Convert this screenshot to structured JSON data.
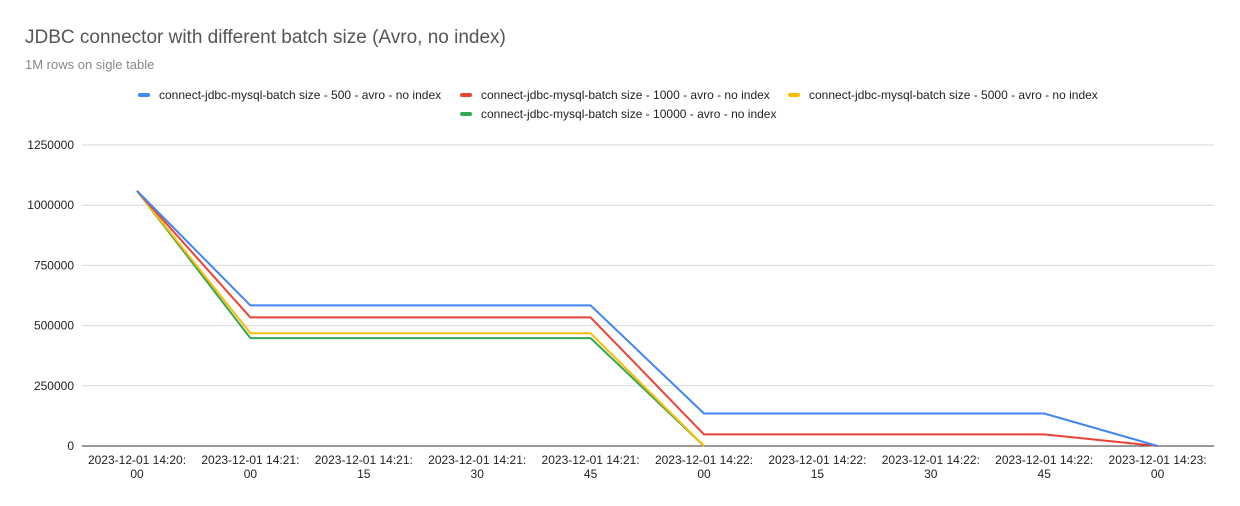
{
  "chart_data": {
    "type": "line",
    "title": "JDBC connector with different batch size (Avro, no index)",
    "subtitle": "1M rows on sigle table",
    "x": [
      [
        "2023-12-01 14:20:",
        "00"
      ],
      [
        "2023-12-01 14:21:",
        "00"
      ],
      [
        "2023-12-01 14:21:",
        "15"
      ],
      [
        "2023-12-01 14:21:",
        "30"
      ],
      [
        "2023-12-01 14:21:",
        "45"
      ],
      [
        "2023-12-01 14:22:",
        "00"
      ],
      [
        "2023-12-01 14:22:",
        "15"
      ],
      [
        "2023-12-01 14:22:",
        "30"
      ],
      [
        "2023-12-01 14:22:",
        "45"
      ],
      [
        "2023-12-01 14:23:",
        "00"
      ]
    ],
    "y_ticks": [
      "0",
      "250000",
      "500000",
      "750000",
      "1000000",
      "1250000"
    ],
    "ylim": [
      0,
      1250000
    ],
    "grid": true,
    "legend_position": "top",
    "series": [
      {
        "name": "connect-jdbc-mysql-batch size - 500 - avro - no index",
        "color": "#4285f4",
        "values": [
          1060000,
          584000,
          584000,
          584000,
          584000,
          135000,
          135000,
          135000,
          135000,
          0
        ]
      },
      {
        "name": "connect-jdbc-mysql-batch size - 1000 - avro - no index",
        "color": "#ea4335",
        "values": [
          1060000,
          534000,
          534000,
          534000,
          534000,
          48000,
          48000,
          48000,
          48000,
          0
        ]
      },
      {
        "name": "connect-jdbc-mysql-batch size - 5000 - avro - no index",
        "color": "#fbbc04",
        "values": [
          1060000,
          468000,
          468000,
          468000,
          468000,
          0,
          null,
          null,
          null,
          null
        ]
      },
      {
        "name": "connect-jdbc-mysql-batch size - 10000 - avro - no index",
        "color": "#34a853",
        "values": [
          1060000,
          448000,
          448000,
          448000,
          448000,
          0,
          null,
          null,
          null,
          null
        ]
      }
    ]
  }
}
